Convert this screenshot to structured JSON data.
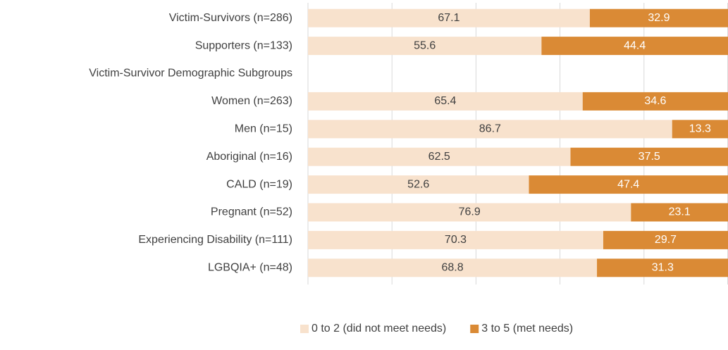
{
  "chart_data": {
    "type": "stacked_bar_horizontal",
    "categories": [
      "Victim-Survivors (n=286)",
      "Supporters (n=133)",
      "Victim-Survivor Demographic Subgroups",
      "Women (n=263)",
      "Men (n=15)",
      "Aboriginal (n=16)",
      "CALD (n=19)",
      "Pregnant (n=52)",
      "Experiencing Disability (n=111)",
      "LGBQIA+ (n=48)"
    ],
    "series": [
      {
        "name": "0 to 2 (did not meet needs)",
        "color": "#f8e2cd",
        "values": [
          67.1,
          55.6,
          null,
          65.4,
          86.7,
          62.5,
          52.6,
          76.9,
          70.3,
          68.8
        ]
      },
      {
        "name": "3 to 5 (met needs)",
        "color": "#da8a35",
        "values": [
          32.9,
          44.4,
          null,
          34.6,
          13.3,
          37.5,
          47.4,
          23.1,
          29.7,
          31.3
        ]
      }
    ],
    "xlim": [
      0,
      100
    ],
    "xticks": [
      0,
      20,
      40,
      60,
      80,
      100
    ],
    "grid": true,
    "legend": "bottom"
  }
}
